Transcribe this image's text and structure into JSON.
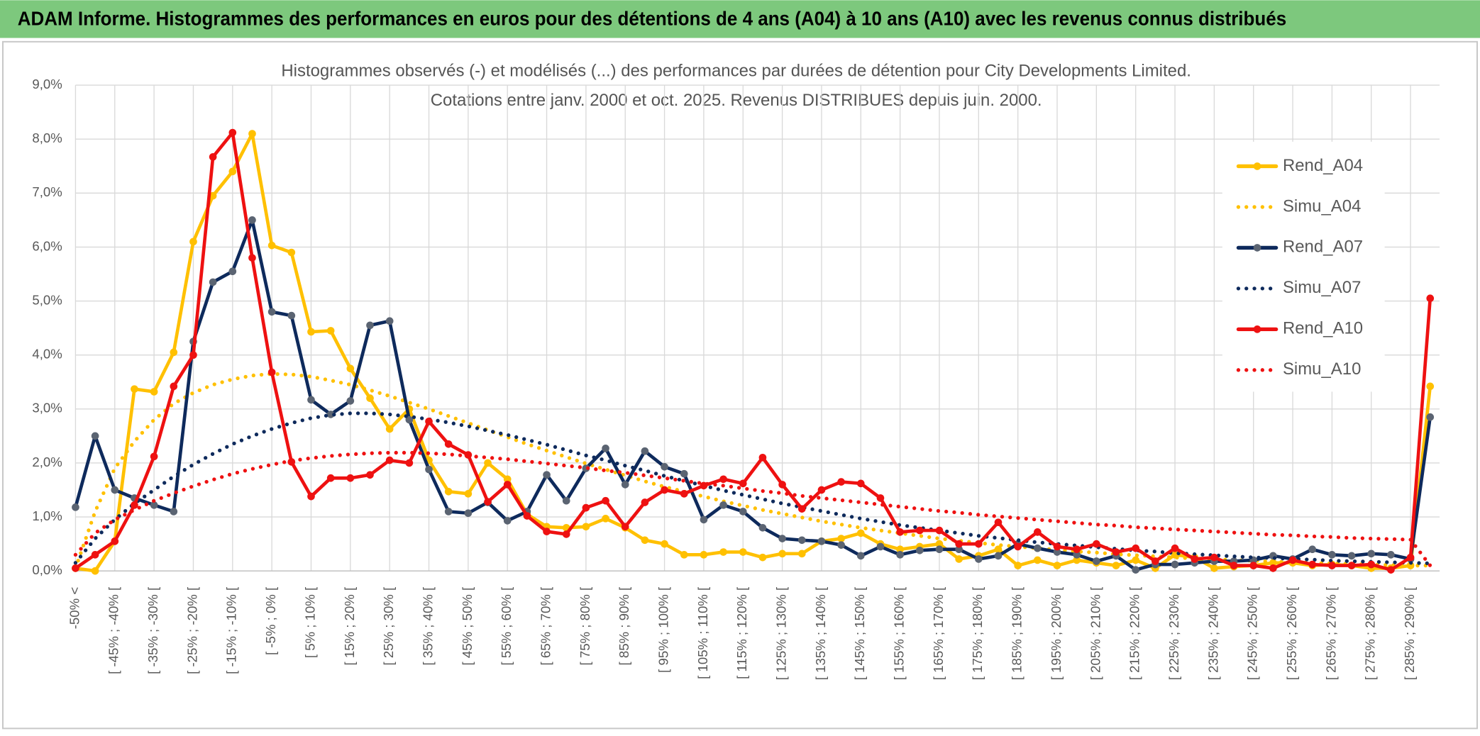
{
  "header_title": "ADAM Informe. Histogrammes des performances en euros pour des détentions de 4 ans (A04) à 10 ans (A10) avec les revenus connus distribués",
  "chart_data": {
    "type": "line",
    "title": "Histogrammes observés (-) et modélisés (...) des performances par durées de détention pour City Developments Limited.",
    "subtitle": "Cotations entre janv. 2000 et oct. 2025. Revenus DISTRIBUES depuis juin. 2000.",
    "categories": [
      "-50% <",
      null,
      "[ -45% ; -40% [",
      null,
      "[ -35% ; -30% [",
      null,
      "[ -25% ; -20% [",
      null,
      "[ -15% ; -10% [",
      null,
      "[ -5% ; 0% [",
      null,
      "[ 5% ; 10% [",
      null,
      "[ 15% ; 20% [",
      null,
      "[ 25% ; 30% [",
      null,
      "[ 35% ; 40% [",
      null,
      "[ 45% ; 50% [",
      null,
      "[ 55% ; 60% [",
      null,
      "[ 65% ; 70% [",
      null,
      "[ 75% ; 80% [",
      null,
      "[ 85% ; 90% [",
      null,
      "[ 95% ; 100% [",
      null,
      "[ 105% ; 110% [",
      null,
      "[ 115% ; 120% [",
      null,
      "[ 125% ; 130% [",
      null,
      "[ 135% ; 140% [",
      null,
      "[ 145% ; 150% [",
      null,
      "[ 155% ; 160% [",
      null,
      "[ 165% ; 170% [",
      null,
      "[ 175% ; 180% [",
      null,
      "[ 185% ; 190% [",
      null,
      "[ 195% ; 200% [",
      null,
      "[ 205% ; 210% [",
      null,
      "[ 215% ; 220% [",
      null,
      "[ 225% ; 230% [",
      null,
      "[ 235% ; 240% [",
      null,
      "[ 245% ; 250% [",
      null,
      "[ 255% ; 260% [",
      null,
      "[ 265% ; 270% [",
      null,
      "[ 275% ; 280% [",
      null,
      "[ 285% ; 290% [",
      null
    ],
    "ylim": [
      0,
      9
    ],
    "yticks": [
      {
        "value": 0,
        "label": "0,0%"
      },
      {
        "value": 1,
        "label": "1,0%"
      },
      {
        "value": 2,
        "label": "2,0%"
      },
      {
        "value": 3,
        "label": "3,0%"
      },
      {
        "value": 4,
        "label": "4,0%"
      },
      {
        "value": 5,
        "label": "5,0%"
      },
      {
        "value": 6,
        "label": "6,0%"
      },
      {
        "value": 7,
        "label": "7,0%"
      },
      {
        "value": 8,
        "label": "8,0%"
      },
      {
        "value": 9,
        "label": "9,0%"
      }
    ],
    "grid": true,
    "legend": "right",
    "series": [
      {
        "name": "Rend_A04",
        "color": "#ffc000",
        "style": "solid",
        "markers": true,
        "values": [
          0.05,
          0,
          0.55,
          3.37,
          3.32,
          4.05,
          6.1,
          6.95,
          7.4,
          8.1,
          6.03,
          5.9,
          4.43,
          4.45,
          3.75,
          3.2,
          2.63,
          3.0,
          2.05,
          1.47,
          1.43,
          2.0,
          1.7,
          1.05,
          0.82,
          0.8,
          0.82,
          0.97,
          0.8,
          0.57,
          0.5,
          0.3,
          0.3,
          0.35,
          0.35,
          0.25,
          0.32,
          0.32,
          0.55,
          0.6,
          0.7,
          0.5,
          0.4,
          0.45,
          0.5,
          0.22,
          0.28,
          0.4,
          0.1,
          0.2,
          0.1,
          0.2,
          0.15,
          0.1,
          0.2,
          0.05,
          0.3,
          0.25,
          0.05,
          0.08,
          0.1,
          0.15,
          0.15,
          0.1,
          0.12,
          0.1,
          0.05,
          0.05,
          0.1,
          3.42
        ]
      },
      {
        "name": "Simu_A04",
        "color": "#ffc000",
        "style": "dotted",
        "markers": false,
        "values": [
          0.05,
          1.1,
          1.9,
          2.4,
          2.8,
          3.1,
          3.3,
          3.45,
          3.55,
          3.62,
          3.65,
          3.64,
          3.6,
          3.53,
          3.45,
          3.35,
          3.24,
          3.12,
          3.0,
          2.87,
          2.74,
          2.61,
          2.48,
          2.35,
          2.23,
          2.11,
          1.99,
          1.88,
          1.77,
          1.66,
          1.56,
          1.47,
          1.38,
          1.29,
          1.21,
          1.13,
          1.06,
          0.99,
          0.92,
          0.86,
          0.8,
          0.75,
          0.7,
          0.65,
          0.6,
          0.56,
          0.52,
          0.48,
          0.45,
          0.42,
          0.39,
          0.36,
          0.34,
          0.31,
          0.29,
          0.27,
          0.25,
          0.23,
          0.22,
          0.2,
          0.19,
          0.17,
          0.16,
          0.15,
          0.14,
          0.13,
          0.12,
          0.11,
          0.1,
          0.1
        ]
      },
      {
        "name": "Rend_A07",
        "color": "#0e2a5c",
        "marker_color": "#5b6472",
        "style": "solid",
        "markers": true,
        "values": [
          1.18,
          2.5,
          1.5,
          1.35,
          1.22,
          1.1,
          4.25,
          5.35,
          5.55,
          6.5,
          4.8,
          4.73,
          3.17,
          2.9,
          3.15,
          4.55,
          4.63,
          2.8,
          1.88,
          1.1,
          1.07,
          1.27,
          0.93,
          1.1,
          1.78,
          1.3,
          1.9,
          2.27,
          1.6,
          2.22,
          1.93,
          1.8,
          0.95,
          1.22,
          1.1,
          0.8,
          0.6,
          0.57,
          0.55,
          0.48,
          0.28,
          0.45,
          0.3,
          0.38,
          0.4,
          0.4,
          0.22,
          0.28,
          0.5,
          0.42,
          0.35,
          0.3,
          0.18,
          0.28,
          0.02,
          0.12,
          0.12,
          0.15,
          0.18,
          0.18,
          0.2,
          0.28,
          0.22,
          0.4,
          0.3,
          0.28,
          0.32,
          0.3,
          0.22,
          2.85
        ]
      },
      {
        "name": "Simu_A07",
        "color": "#0e2a5c",
        "style": "dotted",
        "markers": false,
        "values": [
          0.15,
          0.6,
          0.95,
          1.25,
          1.5,
          1.75,
          1.97,
          2.17,
          2.35,
          2.5,
          2.63,
          2.74,
          2.83,
          2.89,
          2.92,
          2.92,
          2.9,
          2.86,
          2.81,
          2.75,
          2.68,
          2.6,
          2.52,
          2.43,
          2.34,
          2.24,
          2.14,
          2.05,
          1.95,
          1.86,
          1.76,
          1.67,
          1.58,
          1.49,
          1.41,
          1.33,
          1.25,
          1.18,
          1.11,
          1.04,
          0.97,
          0.91,
          0.85,
          0.8,
          0.75,
          0.7,
          0.65,
          0.61,
          0.57,
          0.53,
          0.5,
          0.47,
          0.44,
          0.41,
          0.38,
          0.36,
          0.33,
          0.31,
          0.29,
          0.27,
          0.25,
          0.24,
          0.22,
          0.21,
          0.19,
          0.18,
          0.17,
          0.16,
          0.15,
          0.14
        ]
      },
      {
        "name": "Rend_A10",
        "color": "#ee1111",
        "style": "solid",
        "markers": true,
        "values": [
          0.05,
          0.3,
          0.55,
          1.22,
          2.12,
          3.42,
          4.0,
          7.67,
          8.12,
          5.8,
          3.68,
          2.02,
          1.38,
          1.72,
          1.72,
          1.78,
          2.05,
          2.0,
          2.77,
          2.35,
          2.15,
          1.28,
          1.6,
          1.02,
          0.73,
          0.68,
          1.17,
          1.3,
          0.82,
          1.27,
          1.5,
          1.43,
          1.58,
          1.7,
          1.62,
          2.1,
          1.6,
          1.15,
          1.5,
          1.65,
          1.62,
          1.35,
          0.72,
          0.75,
          0.75,
          0.5,
          0.5,
          0.9,
          0.45,
          0.72,
          0.45,
          0.4,
          0.5,
          0.35,
          0.42,
          0.18,
          0.42,
          0.22,
          0.25,
          0.1,
          0.1,
          0.05,
          0.2,
          0.12,
          0.1,
          0.1,
          0.12,
          0.02,
          0.25,
          5.05
        ]
      },
      {
        "name": "Simu_A10",
        "color": "#ee1111",
        "style": "dotted",
        "markers": false,
        "values": [
          0.3,
          0.7,
          0.95,
          1.13,
          1.3,
          1.44,
          1.57,
          1.69,
          1.8,
          1.89,
          1.97,
          2.04,
          2.09,
          2.13,
          2.16,
          2.18,
          2.19,
          2.19,
          2.18,
          2.16,
          2.13,
          2.1,
          2.07,
          2.03,
          1.99,
          1.95,
          1.91,
          1.86,
          1.82,
          1.77,
          1.72,
          1.67,
          1.62,
          1.58,
          1.53,
          1.48,
          1.44,
          1.39,
          1.35,
          1.31,
          1.27,
          1.23,
          1.19,
          1.15,
          1.11,
          1.08,
          1.04,
          1.01,
          0.98,
          0.95,
          0.92,
          0.89,
          0.86,
          0.84,
          0.81,
          0.79,
          0.77,
          0.75,
          0.73,
          0.71,
          0.69,
          0.67,
          0.66,
          0.64,
          0.63,
          0.61,
          0.6,
          0.59,
          0.58,
          0.1
        ]
      }
    ]
  }
}
